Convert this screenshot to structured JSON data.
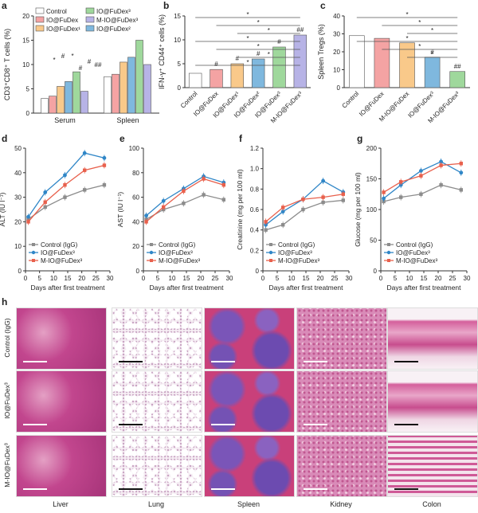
{
  "panel_letters": [
    "a",
    "b",
    "c",
    "d",
    "e",
    "f",
    "g",
    "h"
  ],
  "colors": {
    "control": "#ffffff",
    "io_fudex": "#f4a3a3",
    "io_fudex1": "#f9c98a",
    "io_fudex2": "#7fb8de",
    "io_fudex3": "#9fd89c",
    "m_io_fudex3": "#b7b3e6",
    "line_control": "#8c8c8c",
    "line_io3": "#2f86c7",
    "line_mio3": "#e8604c"
  },
  "chart_data": [
    {
      "panel": "a",
      "type": "bar",
      "ylabel": "CD3⁺CD8⁺ T cells (%)",
      "ylim": [
        0,
        20
      ],
      "yticks": [
        "0",
        "5",
        "10",
        "15",
        "20"
      ],
      "categories": [
        "Serum",
        "Spleen"
      ],
      "legend": [
        "Control",
        "IO@FuDex",
        "IO@FuDex¹",
        "IO@FuDex²",
        "IO@FuDex³",
        "M-IO@FuDex³"
      ],
      "series": [
        {
          "name": "Control",
          "values": [
            3,
            7.5
          ]
        },
        {
          "name": "IO@FuDex",
          "values": [
            3.5,
            8
          ]
        },
        {
          "name": "IO@FuDex¹",
          "values": [
            5.5,
            10.5
          ]
        },
        {
          "name": "IO@FuDex²",
          "values": [
            6.5,
            11.5
          ]
        },
        {
          "name": "IO@FuDex³",
          "values": [
            8.5,
            15
          ]
        },
        {
          "name": "M-IO@FuDex³",
          "values": [
            4.5,
            10
          ]
        }
      ],
      "annotations": [
        "#",
        "#",
        "##",
        "#",
        "*",
        "*",
        "*",
        "#",
        "#",
        "##",
        "#",
        "*",
        "*",
        "*"
      ]
    },
    {
      "panel": "b",
      "type": "bar",
      "ylabel": "IFN-γ⁺ CD44⁺ cells (%)",
      "ylim": [
        0,
        15
      ],
      "yticks": [
        "0",
        "5",
        "10",
        "15"
      ],
      "categories": [
        "Control",
        "IO@FuDex",
        "IO@FuDex¹",
        "IO@FuDex²",
        "IO@FuDex³",
        "M-IO@FuDex³"
      ],
      "values": [
        3,
        3.8,
        5,
        6,
        8.5,
        11
      ],
      "marks": [
        "",
        "#",
        "#",
        "#",
        "#",
        "##"
      ],
      "significance": [
        "*",
        "*",
        "*",
        "*",
        "*",
        "*",
        "*"
      ]
    },
    {
      "panel": "c",
      "type": "bar",
      "ylabel": "Spleen Tregs (%)",
      "ylim": [
        0,
        40
      ],
      "yticks": [
        "0",
        "10",
        "20",
        "30",
        "40"
      ],
      "categories": [
        "Control",
        "IO@FuDex",
        "M-IO@FuDex",
        "IO@FuDex³",
        "M-IO@FuDex³"
      ],
      "values": [
        29,
        27.5,
        25,
        17,
        9
      ],
      "marks": [
        "",
        "",
        "",
        "#",
        "##"
      ],
      "significance": [
        "*",
        "*",
        "*",
        "*",
        "*",
        "*"
      ]
    },
    {
      "panel": "d",
      "type": "line",
      "ylabel": "ALT (IU l⁻¹)",
      "xlabel": "Days after first treatment",
      "ylim": [
        0,
        50
      ],
      "xlim": [
        0,
        30
      ],
      "yticks": [
        "0",
        "10",
        "20",
        "30",
        "40",
        "50"
      ],
      "xticks": [
        "0",
        "5",
        "10",
        "15",
        "20",
        "25",
        "30"
      ],
      "legend": [
        "Control (IgG)",
        "IO@FuDex³",
        "M-IO@FuDex³"
      ],
      "x": [
        1,
        7,
        14,
        21,
        28
      ],
      "series": [
        {
          "name": "Control (IgG)",
          "values": [
            21,
            26,
            30,
            33,
            35
          ]
        },
        {
          "name": "IO@FuDex³",
          "values": [
            22,
            32,
            39,
            48,
            46
          ]
        },
        {
          "name": "M-IO@FuDex³",
          "values": [
            20,
            28,
            35,
            41,
            43
          ]
        }
      ]
    },
    {
      "panel": "e",
      "type": "line",
      "ylabel": "AST (IU l⁻¹)",
      "xlabel": "Days after first treatment",
      "ylim": [
        0,
        100
      ],
      "xlim": [
        0,
        30
      ],
      "yticks": [
        "0",
        "20",
        "40",
        "60",
        "80",
        "100"
      ],
      "xticks": [
        "0",
        "5",
        "10",
        "15",
        "20",
        "25",
        "30"
      ],
      "legend": [
        "Control (IgG)",
        "IO@FuDex³",
        "M-IO@FuDex³"
      ],
      "x": [
        1,
        7,
        14,
        21,
        28
      ],
      "series": [
        {
          "name": "Control (IgG)",
          "values": [
            42,
            50,
            55,
            62,
            58
          ]
        },
        {
          "name": "IO@FuDex³",
          "values": [
            45,
            57,
            67,
            77,
            72
          ]
        },
        {
          "name": "M-IO@FuDex³",
          "values": [
            40,
            52,
            65,
            75,
            70
          ]
        }
      ]
    },
    {
      "panel": "f",
      "type": "line",
      "ylabel": "Creatinine (mg per 100 ml)",
      "xlabel": "Days after first treatment",
      "ylim": [
        0,
        1.2
      ],
      "xlim": [
        0,
        30
      ],
      "yticks": [
        "0",
        "0.2",
        "0.4",
        "0.6",
        "0.8",
        "1.0",
        "1.2"
      ],
      "xticks": [
        "0",
        "5",
        "10",
        "15",
        "20",
        "25",
        "30"
      ],
      "legend": [
        "Control (IgG)",
        "IO@FuDex³",
        "M-IO@FuDex³"
      ],
      "x": [
        1,
        7,
        14,
        21,
        28
      ],
      "series": [
        {
          "name": "Control (IgG)",
          "values": [
            0.4,
            0.45,
            0.6,
            0.67,
            0.69
          ]
        },
        {
          "name": "IO@FuDex³",
          "values": [
            0.45,
            0.58,
            0.7,
            0.88,
            0.77
          ]
        },
        {
          "name": "M-IO@FuDex³",
          "values": [
            0.48,
            0.62,
            0.7,
            0.72,
            0.75
          ]
        }
      ]
    },
    {
      "panel": "g",
      "type": "line",
      "ylabel": "Glucose (mg per 100 ml)",
      "xlabel": "Days after first treatment",
      "ylim": [
        0,
        200
      ],
      "xlim": [
        0,
        30
      ],
      "yticks": [
        "0",
        "50",
        "100",
        "150",
        "200"
      ],
      "xticks": [
        "0",
        "5",
        "10",
        "15",
        "20",
        "25",
        "30"
      ],
      "legend": [
        "Control (IgG)",
        "IO@FuDex³",
        "M-IO@FuDex³"
      ],
      "x": [
        1,
        7,
        14,
        21,
        28
      ],
      "series": [
        {
          "name": "Control (IgG)",
          "values": [
            113,
            120,
            125,
            140,
            132
          ]
        },
        {
          "name": "IO@FuDex³",
          "values": [
            118,
            140,
            163,
            178,
            160
          ]
        },
        {
          "name": "M-IO@FuDex³",
          "values": [
            128,
            145,
            155,
            172,
            175
          ]
        }
      ]
    }
  ],
  "histology": {
    "rows": [
      "Control (IgG)",
      "IO@FuDex³",
      "M-IO@FuDex³"
    ],
    "columns": [
      "Liver",
      "Lung",
      "Spleen",
      "Kidney",
      "Colon"
    ]
  }
}
